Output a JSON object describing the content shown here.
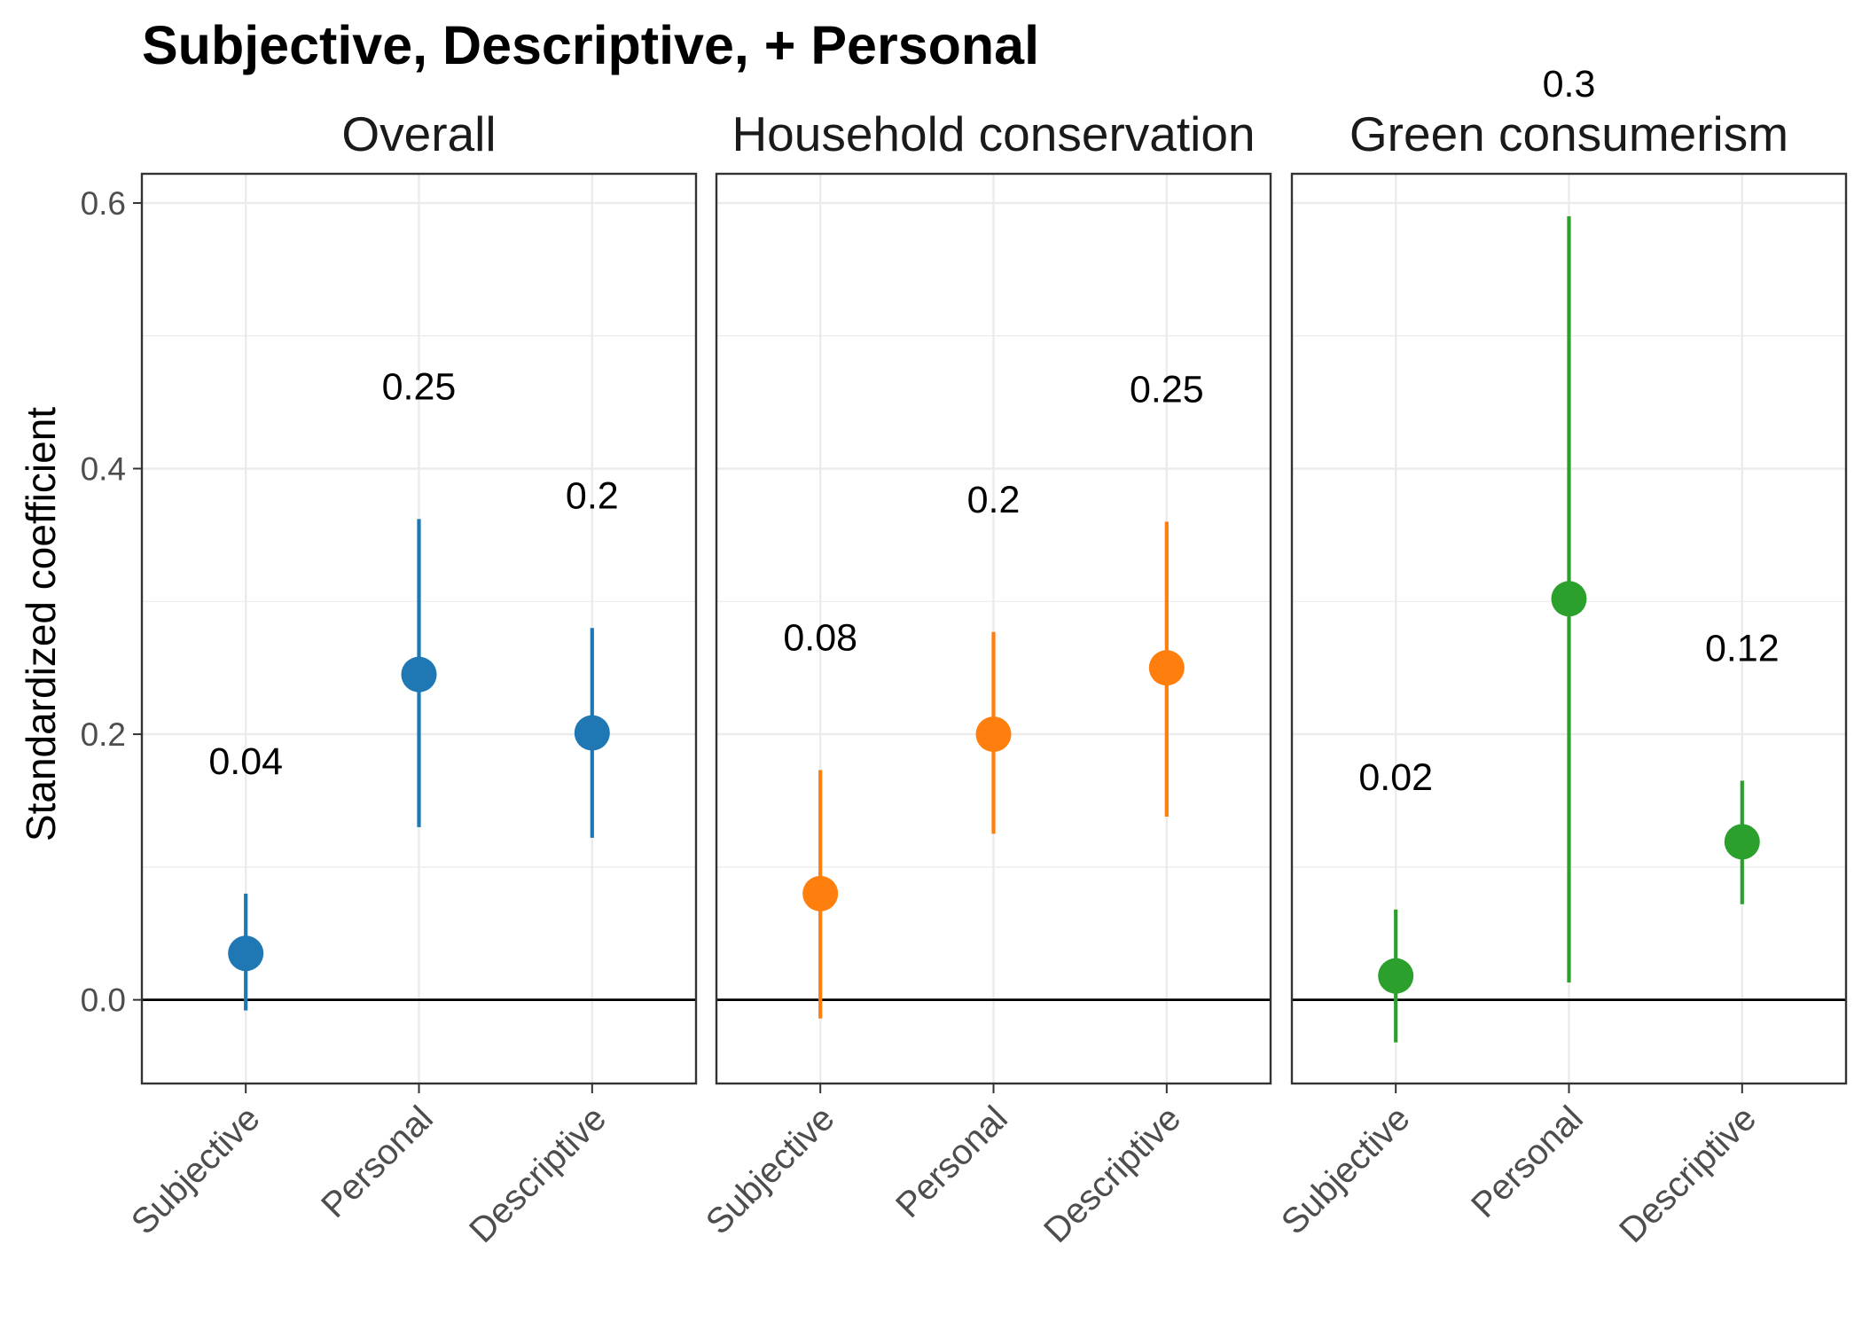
{
  "title": "Subjective, Descriptive, + Personal",
  "ylabel": "Standardized coefficient",
  "y_ticks": [
    "0.0",
    "0.2",
    "0.4",
    "0.6"
  ],
  "chart_data": {
    "type": "scatter",
    "title": "Subjective, Descriptive, + Personal",
    "xlabel": "",
    "ylabel": "Standardized coefficient",
    "ylim": [
      -0.063,
      0.622
    ],
    "yticks": [
      0.0,
      0.2,
      0.4,
      0.6
    ],
    "reference_line": 0,
    "grid": true,
    "categories": [
      "Subjective",
      "Personal",
      "Descriptive"
    ],
    "facets": [
      {
        "name": "Overall",
        "color": "#1f77b4",
        "points": [
          {
            "category": "Subjective",
            "value": 0.035,
            "lower": -0.008,
            "upper": 0.08,
            "label": "0.04"
          },
          {
            "category": "Personal",
            "value": 0.245,
            "lower": 0.13,
            "upper": 0.362,
            "label": "0.25"
          },
          {
            "category": "Descriptive",
            "value": 0.201,
            "lower": 0.122,
            "upper": 0.28,
            "label": "0.2"
          }
        ]
      },
      {
        "name": "Household conservation",
        "color": "#ff7f0e",
        "points": [
          {
            "category": "Subjective",
            "value": 0.08,
            "lower": -0.014,
            "upper": 0.173,
            "label": "0.08"
          },
          {
            "category": "Personal",
            "value": 0.2,
            "lower": 0.125,
            "upper": 0.277,
            "label": "0.2"
          },
          {
            "category": "Descriptive",
            "value": 0.25,
            "lower": 0.138,
            "upper": 0.36,
            "label": "0.25"
          }
        ]
      },
      {
        "name": "Green consumerism",
        "color": "#2ca02c",
        "points": [
          {
            "category": "Subjective",
            "value": 0.018,
            "lower": -0.032,
            "upper": 0.068,
            "label": "0.02"
          },
          {
            "category": "Personal",
            "value": 0.302,
            "lower": 0.013,
            "upper": 0.59,
            "label": "0.3"
          },
          {
            "category": "Descriptive",
            "value": 0.119,
            "lower": 0.072,
            "upper": 0.165,
            "label": "0.12"
          }
        ]
      }
    ]
  }
}
